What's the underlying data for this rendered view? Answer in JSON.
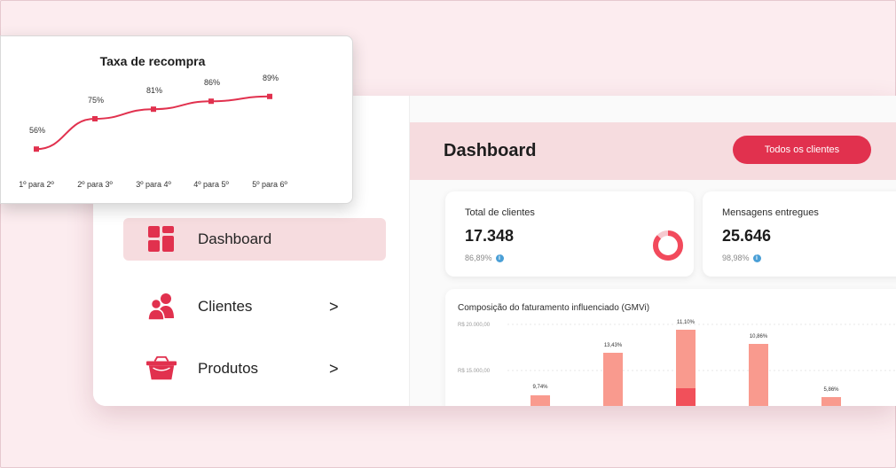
{
  "sidebar": {
    "items": [
      {
        "label": "Dashboard",
        "icon": "dashboard-grid-icon",
        "active": true
      },
      {
        "label": "Clientes",
        "icon": "users-icon",
        "chevron": ">"
      },
      {
        "label": "Produtos",
        "icon": "basket-icon",
        "chevron": ">"
      }
    ]
  },
  "header": {
    "title": "Dashboard",
    "button_label": "Todos os clientes"
  },
  "stats": [
    {
      "label": "Total de clientes",
      "value": "17.348",
      "sub": "86,89%",
      "donut_fraction": 0.87
    },
    {
      "label": "Mensagens entregues",
      "value": "25.646",
      "sub": "98,98%"
    }
  ],
  "gmv": {
    "title": "Composição do faturamento influenciado (GMVi)",
    "y_ticks": [
      "R$ 20.000,00",
      "R$ 15.000,00"
    ],
    "bar_labels": [
      "9,74%",
      "13,43%",
      "11,10%",
      "10,86%",
      "5,86%"
    ]
  },
  "colors": {
    "accent": "#e1314e",
    "bar_light": "#f99a8e",
    "bar_dark": "#f1505a",
    "highlight": "#f6dcdf"
  },
  "chart_data": {
    "type": "line",
    "title": "Taxa de recompra",
    "categories": [
      "1º para 2º",
      "2º para 3º",
      "3º para 4º",
      "4º para 5º",
      "5º para 6º"
    ],
    "values": [
      56,
      75,
      81,
      86,
      89
    ],
    "data_labels": [
      "56%",
      "75%",
      "81%",
      "86%",
      "89%"
    ],
    "ylim": [
      50,
      90
    ],
    "grid": false
  }
}
